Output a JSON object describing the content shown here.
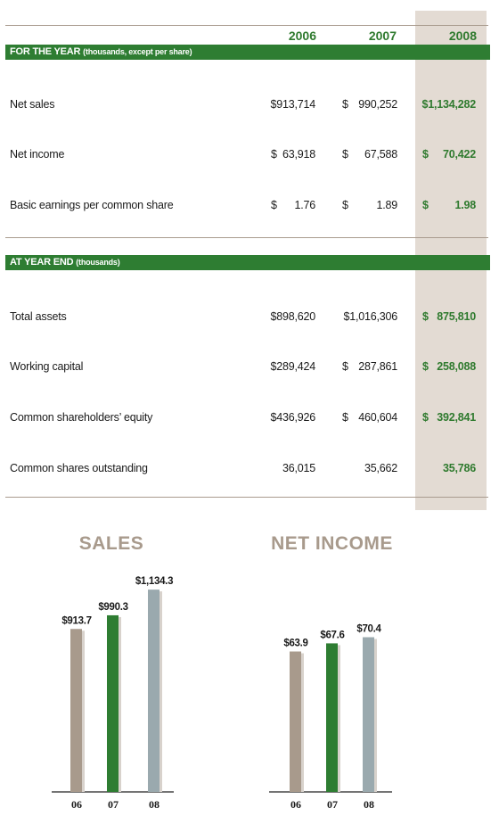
{
  "table": {
    "years": [
      "2006",
      "2007",
      "2008"
    ],
    "section1": {
      "title": "FOR THE YEAR",
      "subtitle": "(thousands, except per share)",
      "rows": [
        {
          "label": "Net sales",
          "values": [
            {
              "dollar": "",
              "amount": "$913,714"
            },
            {
              "dollar": "$",
              "amount": "990,252"
            },
            {
              "dollar": "",
              "amount": "$1,134,282"
            }
          ]
        },
        {
          "label": "Net income",
          "values": [
            {
              "dollar": "$",
              "amount": "63,918"
            },
            {
              "dollar": "$",
              "amount": "67,588"
            },
            {
              "dollar": "$",
              "amount": "70,422"
            }
          ]
        },
        {
          "label": "Basic earnings per common share",
          "values": [
            {
              "dollar": "$",
              "amount": "1.76"
            },
            {
              "dollar": "$",
              "amount": "1.89"
            },
            {
              "dollar": "$",
              "amount": "1.98"
            }
          ]
        }
      ]
    },
    "section2": {
      "title": "AT YEAR END",
      "subtitle": "(thousands)",
      "rows": [
        {
          "label": "Total assets",
          "values": [
            {
              "dollar": "",
              "amount": "$898,620"
            },
            {
              "dollar": "",
              "amount": "$1,016,306"
            },
            {
              "dollar": "$",
              "amount": "875,810"
            }
          ]
        },
        {
          "label": "Working capital",
          "values": [
            {
              "dollar": "",
              "amount": "$289,424"
            },
            {
              "dollar": "$",
              "amount": "287,861"
            },
            {
              "dollar": "$",
              "amount": "258,088"
            }
          ]
        },
        {
          "label": "Common shareholders’ equity",
          "values": [
            {
              "dollar": "",
              "amount": "$436,926"
            },
            {
              "dollar": "$",
              "amount": "460,604"
            },
            {
              "dollar": "$",
              "amount": "392,841"
            }
          ]
        },
        {
          "label": "Common shares outstanding",
          "values": [
            {
              "dollar": "",
              "amount": "36,015"
            },
            {
              "dollar": "",
              "amount": "35,662"
            },
            {
              "dollar": "",
              "amount": "35,786"
            }
          ]
        }
      ]
    }
  },
  "colors": {
    "green": "#2e7d32",
    "highlight": "#e3dbd3",
    "bar_06": "#a89a8c",
    "bar_07": "#2e7d32",
    "bar_08": "#9aa9ae",
    "title_tan": "#a89a8c"
  },
  "chart_data": [
    {
      "type": "bar",
      "title": "SALES",
      "categories": [
        "06",
        "07",
        "08"
      ],
      "values": [
        913.7,
        990.3,
        1134.3
      ],
      "value_labels": [
        "$913.7",
        "$990.3",
        "$1,134.3"
      ],
      "ylim": [
        0,
        1250
      ]
    },
    {
      "type": "bar",
      "title": "NET INCOME",
      "categories": [
        "06",
        "07",
        "08"
      ],
      "values": [
        63.9,
        67.6,
        70.4
      ],
      "value_labels": [
        "$63.9",
        "$67.6",
        "$70.4"
      ],
      "ylim": [
        0,
        84
      ]
    }
  ]
}
